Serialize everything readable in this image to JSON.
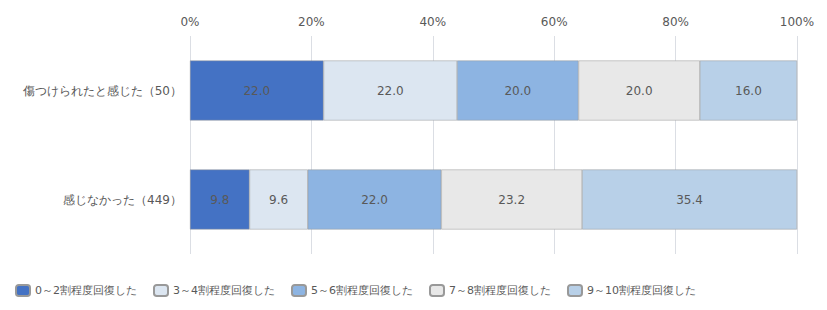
{
  "chart_data": {
    "type": "bar",
    "orientation": "horizontal",
    "stacked": true,
    "data_labels": true,
    "grid": true,
    "legend": "bottom",
    "categories": [
      "傷つけられたと感じた（50）",
      "感じなかった（449）"
    ],
    "series": [
      {
        "name": "0～2割程度回復した",
        "color": "#4472C4",
        "values": [
          22.0,
          9.8
        ],
        "value_labels": [
          "22.0",
          "9.8"
        ]
      },
      {
        "name": "3～4割程度回復した",
        "color": "#DCE6F1",
        "values": [
          22.0,
          9.6
        ],
        "value_labels": [
          "22.0",
          "9.6"
        ]
      },
      {
        "name": "5～6割程度回復した",
        "color": "#8DB4E2",
        "values": [
          20.0,
          22.0
        ],
        "value_labels": [
          "20.0",
          "22.0"
        ]
      },
      {
        "name": "7～8割程度回復した",
        "color": "#E8E8E8",
        "values": [
          20.0,
          23.2
        ],
        "value_labels": [
          "20.0",
          "23.2"
        ]
      },
      {
        "name": "9～10割程度回復した",
        "color": "#B8D0E8",
        "values": [
          16.0,
          35.4
        ],
        "value_labels": [
          "16.0",
          "35.4"
        ]
      }
    ],
    "xlim": [
      0,
      100
    ],
    "xticks": [
      {
        "value": 0,
        "label": "0%"
      },
      {
        "value": 20,
        "label": "20%"
      },
      {
        "value": 40,
        "label": "40%"
      },
      {
        "value": 60,
        "label": "60%"
      },
      {
        "value": 80,
        "label": "80%"
      },
      {
        "value": 100,
        "label": "100%"
      }
    ]
  }
}
